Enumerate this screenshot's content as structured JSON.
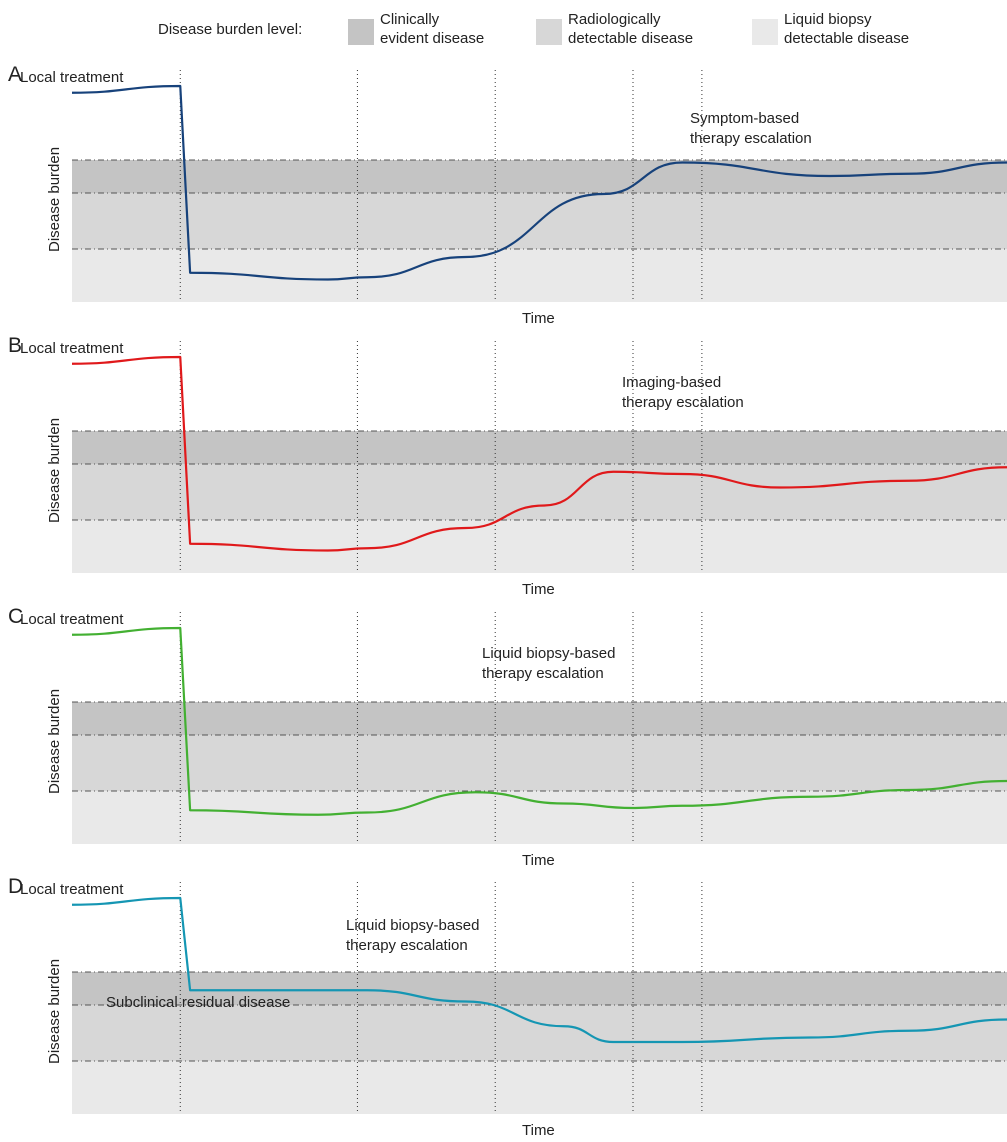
{
  "legend": {
    "title": "Disease burden level:",
    "items": [
      {
        "label": "Clinically\nevident disease",
        "color": "#c4c4c4"
      },
      {
        "label": "Radiologically\ndetectable disease",
        "color": "#d7d7d7"
      },
      {
        "label": "Liquid biopsy\ndetectable disease",
        "color": "#e9e9e9"
      }
    ]
  },
  "colors": {
    "threshold_line": "#555555",
    "marker_line": "#333333"
  },
  "chart_data": [
    {
      "type": "line",
      "panel": "A",
      "local_treatment_label": "Local treatment",
      "escalation_label": "Symptom-based\ntherapy escalation",
      "xlabel": "Time",
      "ylabel": "Disease burden",
      "series": [
        {
          "color": "#17427b",
          "points": [
            [
              0,
              0.93
            ],
            [
              1.1,
              0.96
            ],
            [
              1.2,
              0.13
            ],
            [
              2.6,
              0.1
            ],
            [
              3,
              0.11
            ],
            [
              4,
              0.2
            ],
            [
              5.4,
              0.48
            ],
            [
              6.2,
              0.62
            ],
            [
              7.7,
              0.56
            ],
            [
              8.5,
              0.57
            ],
            [
              9.5,
              0.62
            ]
          ]
        }
      ]
    },
    {
      "type": "line",
      "panel": "B",
      "local_treatment_label": "Local treatment",
      "escalation_label": "Imaging-based\ntherapy escalation",
      "xlabel": "Time",
      "ylabel": "Disease burden",
      "series": [
        {
          "color": "#e0191b",
          "points": [
            [
              0,
              0.93
            ],
            [
              1.1,
              0.96
            ],
            [
              1.2,
              0.13
            ],
            [
              2.6,
              0.1
            ],
            [
              3,
              0.11
            ],
            [
              4,
              0.2
            ],
            [
              4.8,
              0.3
            ],
            [
              5.5,
              0.45
            ],
            [
              6.2,
              0.44
            ],
            [
              7.2,
              0.38
            ],
            [
              8.5,
              0.41
            ],
            [
              9.5,
              0.47
            ]
          ]
        }
      ]
    },
    {
      "type": "line",
      "panel": "C",
      "local_treatment_label": "Local treatment",
      "escalation_label": "Liquid biopsy-based\ntherapy escalation",
      "xlabel": "Time",
      "ylabel": "Disease burden",
      "series": [
        {
          "color": "#43b032",
          "points": [
            [
              0,
              0.93
            ],
            [
              1.1,
              0.96
            ],
            [
              1.2,
              0.15
            ],
            [
              2.5,
              0.13
            ],
            [
              3,
              0.14
            ],
            [
              4.1,
              0.23
            ],
            [
              5,
              0.18
            ],
            [
              5.7,
              0.16
            ],
            [
              6.2,
              0.17
            ],
            [
              7.5,
              0.21
            ],
            [
              8.5,
              0.24
            ],
            [
              9.5,
              0.28
            ]
          ]
        }
      ]
    },
    {
      "type": "line",
      "panel": "D",
      "local_treatment_label": "Local treatment",
      "escalation_label": "Liquid biopsy-based\ntherapy escalation",
      "subclinical_label": "Subclinical residual disease",
      "xlabel": "Time",
      "ylabel": "Disease burden",
      "series": [
        {
          "color": "#1596b3",
          "points": [
            [
              0,
              0.93
            ],
            [
              1.1,
              0.96
            ],
            [
              1.2,
              0.55
            ],
            [
              2.6,
              0.55
            ],
            [
              3,
              0.55
            ],
            [
              4,
              0.5
            ],
            [
              5,
              0.39
            ],
            [
              5.5,
              0.32
            ],
            [
              6.2,
              0.32
            ],
            [
              7.5,
              0.34
            ],
            [
              8.5,
              0.37
            ],
            [
              9.5,
              0.42
            ]
          ]
        }
      ]
    }
  ]
}
